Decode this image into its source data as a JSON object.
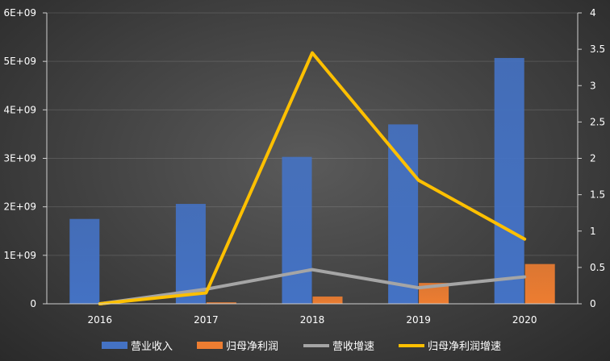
{
  "chart_data": {
    "type": "bar+line",
    "categories": [
      "2016",
      "2017",
      "2018",
      "2019",
      "2020"
    ],
    "bar_series": [
      {
        "name": "营业收入",
        "color": "#4472C4",
        "values": [
          1750000000,
          2060000000,
          3030000000,
          3700000000,
          5070000000
        ]
      },
      {
        "name": "归母净利润",
        "color": "#ED7D31",
        "values": [
          5000000,
          30000000,
          150000000,
          430000000,
          820000000
        ]
      }
    ],
    "line_series": [
      {
        "name": "营收增速",
        "color": "#A5A5A5",
        "values": [
          0.0,
          0.2,
          0.47,
          0.22,
          0.37
        ]
      },
      {
        "name": "归母净利润增速",
        "color": "#FFC000",
        "values": [
          0.0,
          0.15,
          3.45,
          1.7,
          0.89
        ]
      }
    ],
    "y_left": {
      "ylim": [
        0,
        6000000000
      ],
      "ticks": [
        "0",
        "1E+09",
        "2E+09",
        "3E+09",
        "4E+09",
        "5E+09",
        "6E+09"
      ]
    },
    "y_right": {
      "ylim": [
        0,
        4
      ],
      "ticks": [
        "0",
        "0.5",
        "1",
        "1.5",
        "2",
        "2.5",
        "3",
        "3.5",
        "4"
      ]
    },
    "grid": true,
    "legend_position": "bottom"
  }
}
